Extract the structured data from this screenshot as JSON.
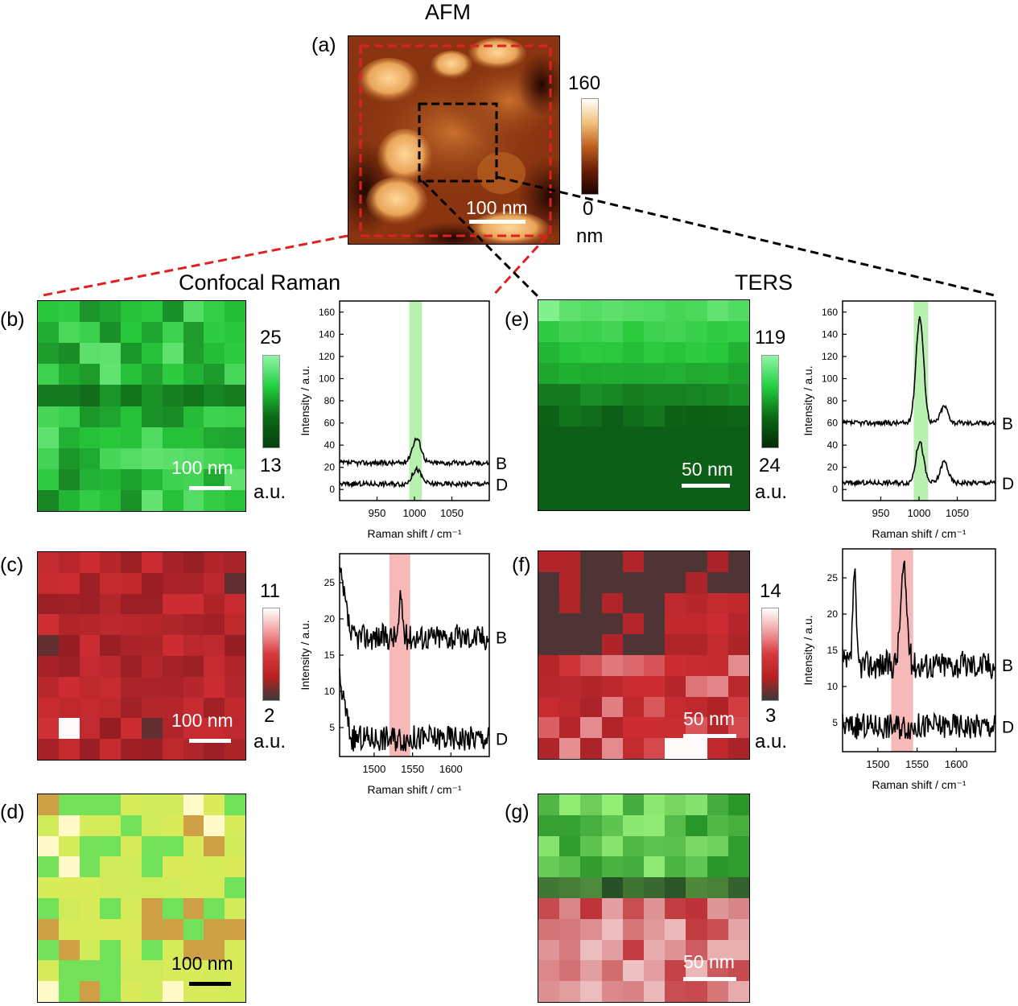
{
  "figure": {
    "afm": {
      "title": "AFM",
      "panel_label": "(a)",
      "scale_label": "100 nm",
      "colorbar": {
        "max": "160",
        "min": "0",
        "unit": "nm"
      }
    },
    "confocal_title": "Confocal Raman",
    "ters_title": "TERS",
    "panels": {
      "b": {
        "label": "(b)",
        "scale_label": "100 nm",
        "cb_max": "25",
        "cb_min": "13",
        "cb_unit": "a.u."
      },
      "c": {
        "label": "(c)",
        "scale_label": "100 nm",
        "cb_max": "11",
        "cb_min": "2",
        "cb_unit": "a.u."
      },
      "d": {
        "label": "(d)",
        "scale_label": "100 nm"
      },
      "e": {
        "label": "(e)",
        "scale_label": "50 nm",
        "cb_max": "119",
        "cb_min": "24",
        "cb_unit": "a.u."
      },
      "f": {
        "label": "(f)",
        "scale_label": "50 nm",
        "cb_max": "14",
        "cb_min": "3",
        "cb_unit": "a.u."
      },
      "g": {
        "label": "(g)",
        "scale_label": "50 nm"
      }
    },
    "colors": {
      "green_high": "#7af0a0",
      "green_low": "#0a4a10",
      "red_high": "#ffffff",
      "red_mid": "#d7383c",
      "red_low": "#3a3a3a",
      "afm_dashed": "#e02020",
      "ters_dashed": "#000000"
    }
  },
  "chart_data": [
    {
      "type": "line",
      "id": "spec-b",
      "xlabel": "Raman shift / cm⁻¹",
      "ylabel": "Intensity / a.u.",
      "xlim": [
        900,
        1100
      ],
      "ylim": [
        -10,
        170
      ],
      "xticks": [
        "950",
        "1000",
        "1050"
      ],
      "yticks": [
        "0",
        "20",
        "40",
        "60",
        "80",
        "100",
        "120",
        "140",
        "160"
      ],
      "highlight": [
        993,
        1010
      ],
      "highlight_color": "#b8f0b0",
      "series": [
        {
          "name": "B",
          "baseline": 24,
          "peaks": [
            [
              1003,
              22,
              6
            ]
          ],
          "noise": 1.5
        },
        {
          "name": "D",
          "baseline": 5,
          "peaks": [
            [
              1003,
              13,
              6
            ]
          ],
          "noise": 1.5
        }
      ]
    },
    {
      "type": "line",
      "id": "spec-c",
      "xlabel": "Raman shift / cm⁻¹",
      "ylabel": "Intensity / a.u.",
      "xlim": [
        1455,
        1650
      ],
      "ylim": [
        1,
        29
      ],
      "xticks": [
        "1500",
        "1550",
        "1600"
      ],
      "yticks": [
        "5",
        "10",
        "15",
        "20",
        "25"
      ],
      "highlight": [
        1520,
        1547
      ],
      "highlight_color": "#f7b8b8",
      "series": [
        {
          "name": "B",
          "baseline": 17.5,
          "peaks": [
            [
              1535,
              5.5,
              2
            ]
          ],
          "noise": 1.2,
          "start_step": 9
        },
        {
          "name": "D",
          "baseline": 3.5,
          "peaks": [],
          "noise": 1.2,
          "start_step": 8
        }
      ]
    },
    {
      "type": "line",
      "id": "spec-e",
      "xlabel": "Raman shift / cm⁻¹",
      "ylabel": "Intensity / a.u.",
      "xlim": [
        900,
        1100
      ],
      "ylim": [
        -10,
        170
      ],
      "xticks": [
        "950",
        "1000",
        "1050"
      ],
      "yticks": [
        "0",
        "20",
        "40",
        "60",
        "80",
        "100",
        "120",
        "140",
        "160"
      ],
      "highlight": [
        993,
        1012
      ],
      "highlight_color": "#b8f0b0",
      "series": [
        {
          "name": "B",
          "baseline": 60,
          "peaks": [
            [
              1001,
              95,
              5
            ],
            [
              1033,
              15,
              5
            ]
          ],
          "noise": 1.5
        },
        {
          "name": "D",
          "baseline": 6,
          "peaks": [
            [
              1001,
              37,
              5
            ],
            [
              1033,
              19,
              5
            ]
          ],
          "noise": 1.5
        }
      ]
    },
    {
      "type": "line",
      "id": "spec-f",
      "xlabel": "Raman shift / cm⁻¹",
      "ylabel": "Intensity / a.u.",
      "xlim": [
        1455,
        1650
      ],
      "ylim": [
        1,
        29
      ],
      "xticks": [
        "1500",
        "1550",
        "1600"
      ],
      "yticks": [
        "5",
        "10",
        "15",
        "20",
        "25"
      ],
      "highlight": [
        1517,
        1545
      ],
      "highlight_color": "#f7b8b8",
      "series": [
        {
          "name": "B",
          "baseline": 13,
          "peaks": [
            [
              1470,
              13,
              2
            ],
            [
              1533,
              13,
              4
            ]
          ],
          "noise": 1.3
        },
        {
          "name": "D",
          "baseline": 4.5,
          "peaks": [],
          "noise": 1.2
        }
      ]
    }
  ]
}
